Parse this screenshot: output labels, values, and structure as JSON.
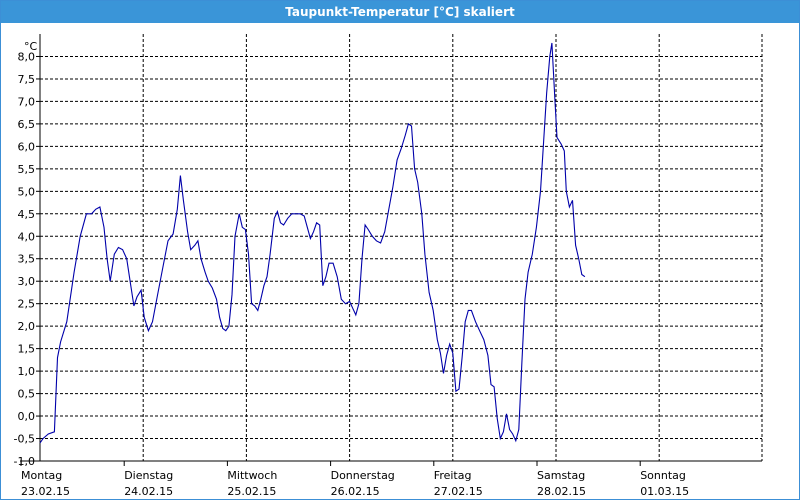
{
  "window": {
    "title": "Taupunkt-Temperatur [°C] skaliert"
  },
  "colors": {
    "titlebar": "#3a95d8",
    "line": "#0000aa",
    "grid": "#000000"
  },
  "chart_data": {
    "type": "line",
    "title": "Taupunkt-Temperatur [°C] skaliert",
    "ylabel": "°C",
    "xlabel": "",
    "ylim": [
      -1.0,
      8.5
    ],
    "grid": true,
    "y_ticks": [
      "8,0",
      "7,5",
      "7,0",
      "6,5",
      "6,0",
      "5,5",
      "5,0",
      "4,5",
      "4,0",
      "3,5",
      "3,0",
      "2,5",
      "2,0",
      "1,5",
      "1,0",
      "0,5",
      "0,0",
      "-0,5",
      "-1,0"
    ],
    "days": [
      {
        "weekday": "Montag",
        "date": "23.02.15"
      },
      {
        "weekday": "Dienstag",
        "date": "24.02.15"
      },
      {
        "weekday": "Mittwoch",
        "date": "25.02.15"
      },
      {
        "weekday": "Donnerstag",
        "date": "26.02.15"
      },
      {
        "weekday": "Freitag",
        "date": "27.02.15"
      },
      {
        "weekday": "Samstag",
        "date": "28.02.15"
      },
      {
        "weekday": "Sonntag",
        "date": "01.03.15"
      }
    ],
    "series": [
      {
        "points": [
          [
            0.0,
            -0.6
          ],
          [
            0.03,
            -0.5
          ],
          [
            0.08,
            -0.4
          ],
          [
            0.14,
            -0.35
          ],
          [
            0.17,
            1.3
          ],
          [
            0.2,
            1.65
          ],
          [
            0.26,
            2.1
          ],
          [
            0.33,
            3.2
          ],
          [
            0.39,
            4.0
          ],
          [
            0.45,
            4.5
          ],
          [
            0.5,
            4.5
          ],
          [
            0.54,
            4.6
          ],
          [
            0.58,
            4.65
          ],
          [
            0.62,
            4.2
          ],
          [
            0.65,
            3.5
          ],
          [
            0.68,
            3.0
          ],
          [
            0.72,
            3.6
          ],
          [
            0.76,
            3.75
          ],
          [
            0.8,
            3.7
          ],
          [
            0.84,
            3.5
          ],
          [
            0.88,
            2.9
          ],
          [
            0.91,
            2.45
          ],
          [
            0.94,
            2.65
          ],
          [
            0.98,
            2.8
          ],
          [
            1.01,
            2.2
          ],
          [
            1.05,
            1.9
          ],
          [
            1.09,
            2.1
          ],
          [
            1.14,
            2.7
          ],
          [
            1.19,
            3.3
          ],
          [
            1.24,
            3.9
          ],
          [
            1.29,
            4.05
          ],
          [
            1.33,
            4.6
          ],
          [
            1.36,
            5.35
          ],
          [
            1.39,
            4.8
          ],
          [
            1.43,
            4.1
          ],
          [
            1.46,
            3.7
          ],
          [
            1.5,
            3.8
          ],
          [
            1.53,
            3.9
          ],
          [
            1.56,
            3.5
          ],
          [
            1.6,
            3.2
          ],
          [
            1.63,
            3.0
          ],
          [
            1.67,
            2.85
          ],
          [
            1.71,
            2.6
          ],
          [
            1.74,
            2.2
          ],
          [
            1.77,
            1.95
          ],
          [
            1.8,
            1.9
          ],
          [
            1.83,
            2.0
          ],
          [
            1.86,
            2.7
          ],
          [
            1.89,
            4.0
          ],
          [
            1.93,
            4.5
          ],
          [
            1.96,
            4.2
          ],
          [
            1.99,
            4.15
          ],
          [
            2.02,
            3.6
          ],
          [
            2.05,
            2.5
          ],
          [
            2.08,
            2.45
          ],
          [
            2.11,
            2.35
          ],
          [
            2.14,
            2.6
          ],
          [
            2.17,
            2.9
          ],
          [
            2.2,
            3.1
          ],
          [
            2.23,
            3.6
          ],
          [
            2.27,
            4.4
          ],
          [
            2.3,
            4.55
          ],
          [
            2.33,
            4.3
          ],
          [
            2.36,
            4.25
          ],
          [
            2.4,
            4.4
          ],
          [
            2.44,
            4.5
          ],
          [
            2.48,
            4.5
          ],
          [
            2.52,
            4.5
          ],
          [
            2.56,
            4.45
          ],
          [
            2.59,
            4.2
          ],
          [
            2.62,
            3.95
          ],
          [
            2.65,
            4.1
          ],
          [
            2.68,
            4.3
          ],
          [
            2.71,
            4.25
          ],
          [
            2.74,
            2.9
          ],
          [
            2.77,
            3.1
          ],
          [
            2.8,
            3.4
          ],
          [
            2.84,
            3.4
          ],
          [
            2.88,
            3.1
          ],
          [
            2.92,
            2.6
          ],
          [
            2.96,
            2.5
          ],
          [
            3.0,
            2.55
          ],
          [
            3.03,
            2.4
          ],
          [
            3.06,
            2.25
          ],
          [
            3.09,
            2.5
          ],
          [
            3.12,
            3.5
          ],
          [
            3.15,
            4.25
          ],
          [
            3.18,
            4.15
          ],
          [
            3.22,
            4.0
          ],
          [
            3.26,
            3.9
          ],
          [
            3.3,
            3.85
          ],
          [
            3.34,
            4.1
          ],
          [
            3.38,
            4.6
          ],
          [
            3.42,
            5.1
          ],
          [
            3.46,
            5.7
          ],
          [
            3.5,
            5.95
          ],
          [
            3.54,
            6.25
          ],
          [
            3.57,
            6.5
          ],
          [
            3.6,
            6.45
          ],
          [
            3.63,
            5.5
          ],
          [
            3.66,
            5.2
          ],
          [
            3.7,
            4.5
          ],
          [
            3.73,
            3.6
          ],
          [
            3.77,
            2.75
          ],
          [
            3.81,
            2.35
          ],
          [
            3.85,
            1.7
          ],
          [
            3.88,
            1.4
          ],
          [
            3.91,
            0.95
          ],
          [
            3.94,
            1.35
          ],
          [
            3.97,
            1.6
          ],
          [
            4.0,
            1.4
          ],
          [
            4.03,
            0.55
          ],
          [
            4.06,
            0.6
          ],
          [
            4.09,
            1.3
          ],
          [
            4.12,
            2.1
          ],
          [
            4.15,
            2.35
          ],
          [
            4.18,
            2.35
          ],
          [
            4.22,
            2.1
          ],
          [
            4.26,
            1.9
          ],
          [
            4.3,
            1.7
          ],
          [
            4.34,
            1.35
          ],
          [
            4.37,
            0.7
          ],
          [
            4.4,
            0.65
          ],
          [
            4.43,
            -0.05
          ],
          [
            4.46,
            -0.5
          ],
          [
            4.49,
            -0.35
          ],
          [
            4.52,
            0.05
          ],
          [
            4.55,
            -0.3
          ],
          [
            4.58,
            -0.4
          ],
          [
            4.61,
            -0.55
          ],
          [
            4.64,
            -0.3
          ],
          [
            4.67,
            1.2
          ],
          [
            4.7,
            2.6
          ],
          [
            4.73,
            3.2
          ],
          [
            4.77,
            3.6
          ],
          [
            4.81,
            4.2
          ],
          [
            4.85,
            5.0
          ],
          [
            4.88,
            6.1
          ],
          [
            4.91,
            7.2
          ],
          [
            4.94,
            8.0
          ],
          [
            4.96,
            8.3
          ],
          [
            4.99,
            7.0
          ],
          [
            5.01,
            6.2
          ],
          [
            5.05,
            6.05
          ],
          [
            5.08,
            5.9
          ],
          [
            5.1,
            5.0
          ],
          [
            5.13,
            4.65
          ],
          [
            5.16,
            4.8
          ],
          [
            5.19,
            3.8
          ],
          [
            5.22,
            3.5
          ],
          [
            5.25,
            3.15
          ],
          [
            5.28,
            3.1
          ]
        ]
      }
    ]
  }
}
